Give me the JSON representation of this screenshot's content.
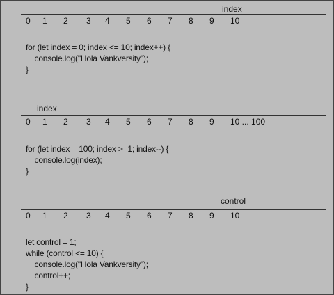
{
  "sections": [
    {
      "label": "index",
      "ticks": [
        "0",
        "1",
        "2",
        "3",
        "4",
        "5",
        "6",
        "7",
        "8",
        "9",
        "10"
      ],
      "code": [
        "for (let index = 0; index <= 10; index++) {",
        "    console.log(\"Hola Vankversity\");",
        "}"
      ]
    },
    {
      "label": "index",
      "ticks": [
        "0",
        "1",
        "2",
        "3",
        "4",
        "5",
        "6",
        "7",
        "8",
        "9",
        "10 ... 100"
      ],
      "code": [
        "for (let index = 100; index >=1; index--) {",
        "    console.log(index);",
        "}"
      ]
    },
    {
      "label": "control",
      "ticks": [
        "0",
        "1",
        "2",
        "3",
        "4",
        "5",
        "6",
        "7",
        "8",
        "9",
        "10"
      ],
      "code": [
        "let control = 1;",
        "while (control <= 10) {",
        "    console.log(\"Hola Vankversity\");",
        "    control++;",
        "}"
      ]
    }
  ]
}
